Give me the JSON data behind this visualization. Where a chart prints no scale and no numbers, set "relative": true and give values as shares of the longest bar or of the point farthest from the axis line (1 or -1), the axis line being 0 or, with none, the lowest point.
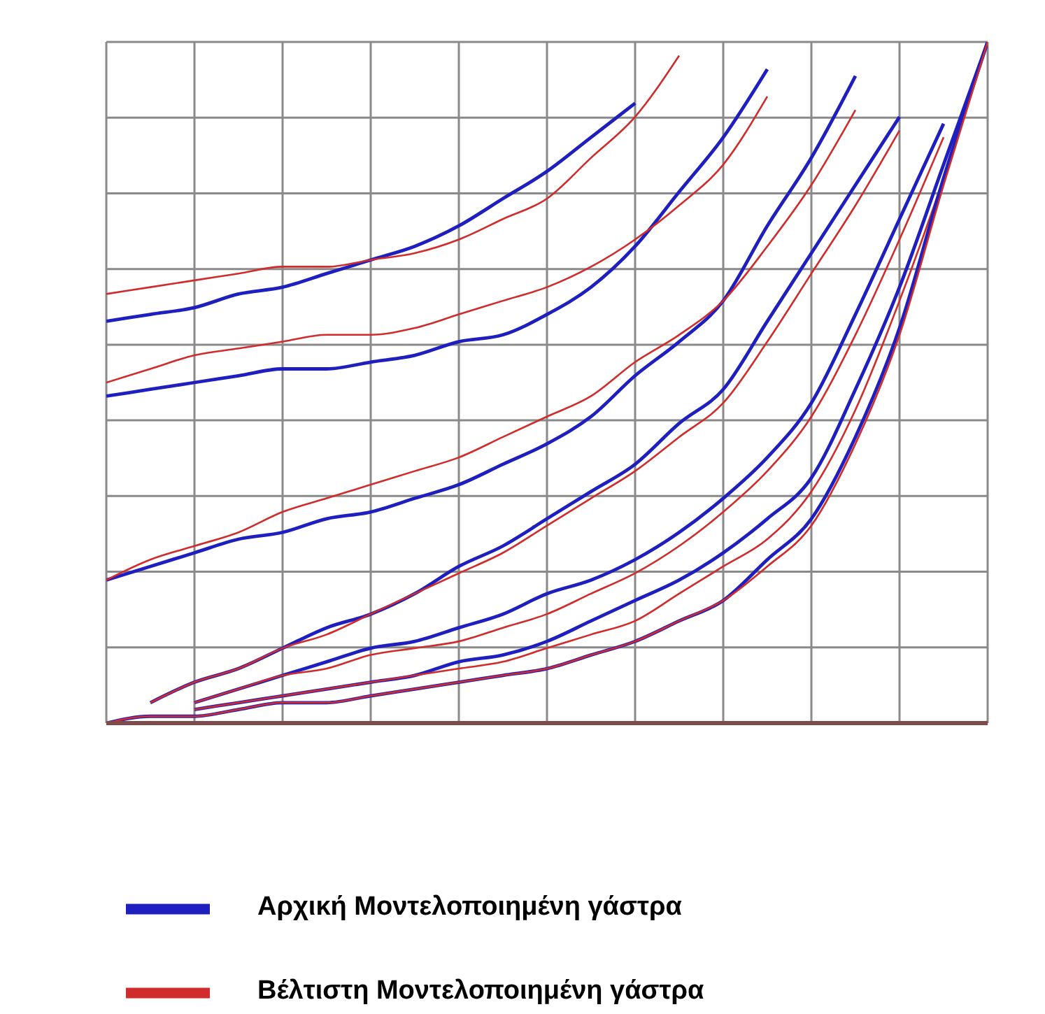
{
  "chart_data": {
    "type": "line",
    "relative": true,
    "grid": true,
    "legend": "bottom",
    "marker": "none",
    "line_style": "solid",
    "categories": [
      null,
      null,
      null,
      null,
      null,
      null,
      null,
      null,
      null,
      null,
      null,
      null,
      null,
      null,
      null,
      null,
      null,
      null,
      null,
      null,
      null
    ],
    "series": [
      {
        "name": "Αρχική Μοντελοποιημένη γάστρα",
        "color": "#1f1fbf",
        "values": [
          0.59,
          0.6,
          0.61,
          0.63,
          0.64,
          0.66,
          0.68,
          0.7,
          0.73,
          0.77,
          0.81,
          0.86,
          0.91,
          null,
          null,
          null,
          null,
          null,
          null,
          null,
          null
        ]
      },
      {
        "name": "Βέλτιστη Μοντελοποιημένη γάστρα",
        "color": "#d02c2c",
        "values": [
          0.63,
          0.64,
          0.65,
          0.66,
          0.67,
          0.67,
          0.68,
          0.69,
          0.71,
          0.74,
          0.77,
          0.83,
          0.89,
          0.98,
          null,
          null,
          null,
          null,
          null,
          null,
          null
        ]
      },
      {
        "color": "#1f1fbf",
        "values": [
          0.48,
          0.49,
          0.5,
          0.51,
          0.52,
          0.52,
          0.53,
          0.54,
          0.56,
          0.57,
          0.6,
          0.64,
          0.7,
          0.78,
          0.86,
          0.96,
          null,
          null,
          null,
          null,
          null
        ]
      },
      {
        "color": "#d02c2c",
        "values": [
          0.5,
          0.52,
          0.54,
          0.55,
          0.56,
          0.57,
          0.57,
          0.58,
          0.6,
          0.62,
          0.64,
          0.67,
          0.71,
          0.76,
          0.82,
          0.92,
          null,
          null,
          null,
          null,
          null
        ]
      },
      {
        "color": "#1f1fbf",
        "values": [
          0.21,
          0.23,
          0.25,
          0.27,
          0.28,
          0.3,
          0.31,
          0.33,
          0.35,
          0.38,
          0.41,
          0.45,
          0.51,
          0.56,
          0.62,
          0.73,
          0.83,
          0.95,
          null,
          null,
          null
        ]
      },
      {
        "color": "#d02c2c",
        "values": [
          0.21,
          0.24,
          0.26,
          0.28,
          0.31,
          0.33,
          0.35,
          0.37,
          0.39,
          0.42,
          0.45,
          0.48,
          0.53,
          0.57,
          0.62,
          0.7,
          0.79,
          0.9,
          null,
          null,
          null
        ]
      },
      {
        "color": "#1f1fbf",
        "values": [
          null,
          0.03,
          0.06,
          0.08,
          0.11,
          0.14,
          0.16,
          0.19,
          0.23,
          0.26,
          0.3,
          0.34,
          0.38,
          0.44,
          0.49,
          0.59,
          0.69,
          0.79,
          0.89,
          null,
          null
        ]
      },
      {
        "color": "#d02c2c",
        "values": [
          null,
          0.03,
          0.06,
          0.08,
          0.11,
          0.13,
          0.16,
          0.19,
          0.22,
          0.25,
          0.29,
          0.33,
          0.37,
          0.42,
          0.47,
          0.56,
          0.66,
          0.76,
          0.87,
          null,
          null
        ]
      },
      {
        "color": "#1f1fbf",
        "values": [
          null,
          null,
          0.03,
          0.05,
          0.07,
          0.09,
          0.11,
          0.12,
          0.14,
          0.16,
          0.19,
          0.21,
          0.24,
          0.28,
          0.33,
          0.39,
          0.47,
          0.6,
          0.74,
          0.88,
          null
        ]
      },
      {
        "color": "#d02c2c",
        "values": [
          null,
          null,
          0.03,
          0.05,
          0.07,
          0.08,
          0.1,
          0.11,
          0.12,
          0.14,
          0.16,
          0.19,
          0.22,
          0.26,
          0.31,
          0.37,
          0.45,
          0.57,
          0.71,
          0.86,
          null
        ]
      },
      {
        "color": "#1f1fbf",
        "values": [
          null,
          null,
          0.02,
          0.03,
          0.04,
          0.05,
          0.06,
          0.07,
          0.09,
          0.1,
          0.12,
          0.15,
          0.18,
          0.21,
          0.25,
          0.3,
          0.36,
          0.49,
          0.64,
          0.82,
          1
        ]
      },
      {
        "color": "#d02c2c",
        "values": [
          null,
          null,
          0.02,
          0.03,
          0.04,
          0.05,
          0.06,
          0.07,
          0.08,
          0.09,
          0.11,
          0.13,
          0.15,
          0.19,
          0.23,
          0.27,
          0.34,
          0.46,
          0.62,
          0.8,
          1
        ]
      },
      {
        "color": "#1f1fbf",
        "values": [
          0,
          0.01,
          0.01,
          0.02,
          0.03,
          0.03,
          0.04,
          0.05,
          0.06,
          0.07,
          0.08,
          0.1,
          0.12,
          0.15,
          0.18,
          0.24,
          0.3,
          0.42,
          0.58,
          0.8,
          1
        ]
      },
      {
        "color": "#d02c2c",
        "values": [
          0,
          0.01,
          0.01,
          0.02,
          0.03,
          0.03,
          0.04,
          0.05,
          0.06,
          0.07,
          0.08,
          0.1,
          0.12,
          0.15,
          0.18,
          0.23,
          0.29,
          0.41,
          0.57,
          0.79,
          1
        ]
      }
    ]
  }
}
